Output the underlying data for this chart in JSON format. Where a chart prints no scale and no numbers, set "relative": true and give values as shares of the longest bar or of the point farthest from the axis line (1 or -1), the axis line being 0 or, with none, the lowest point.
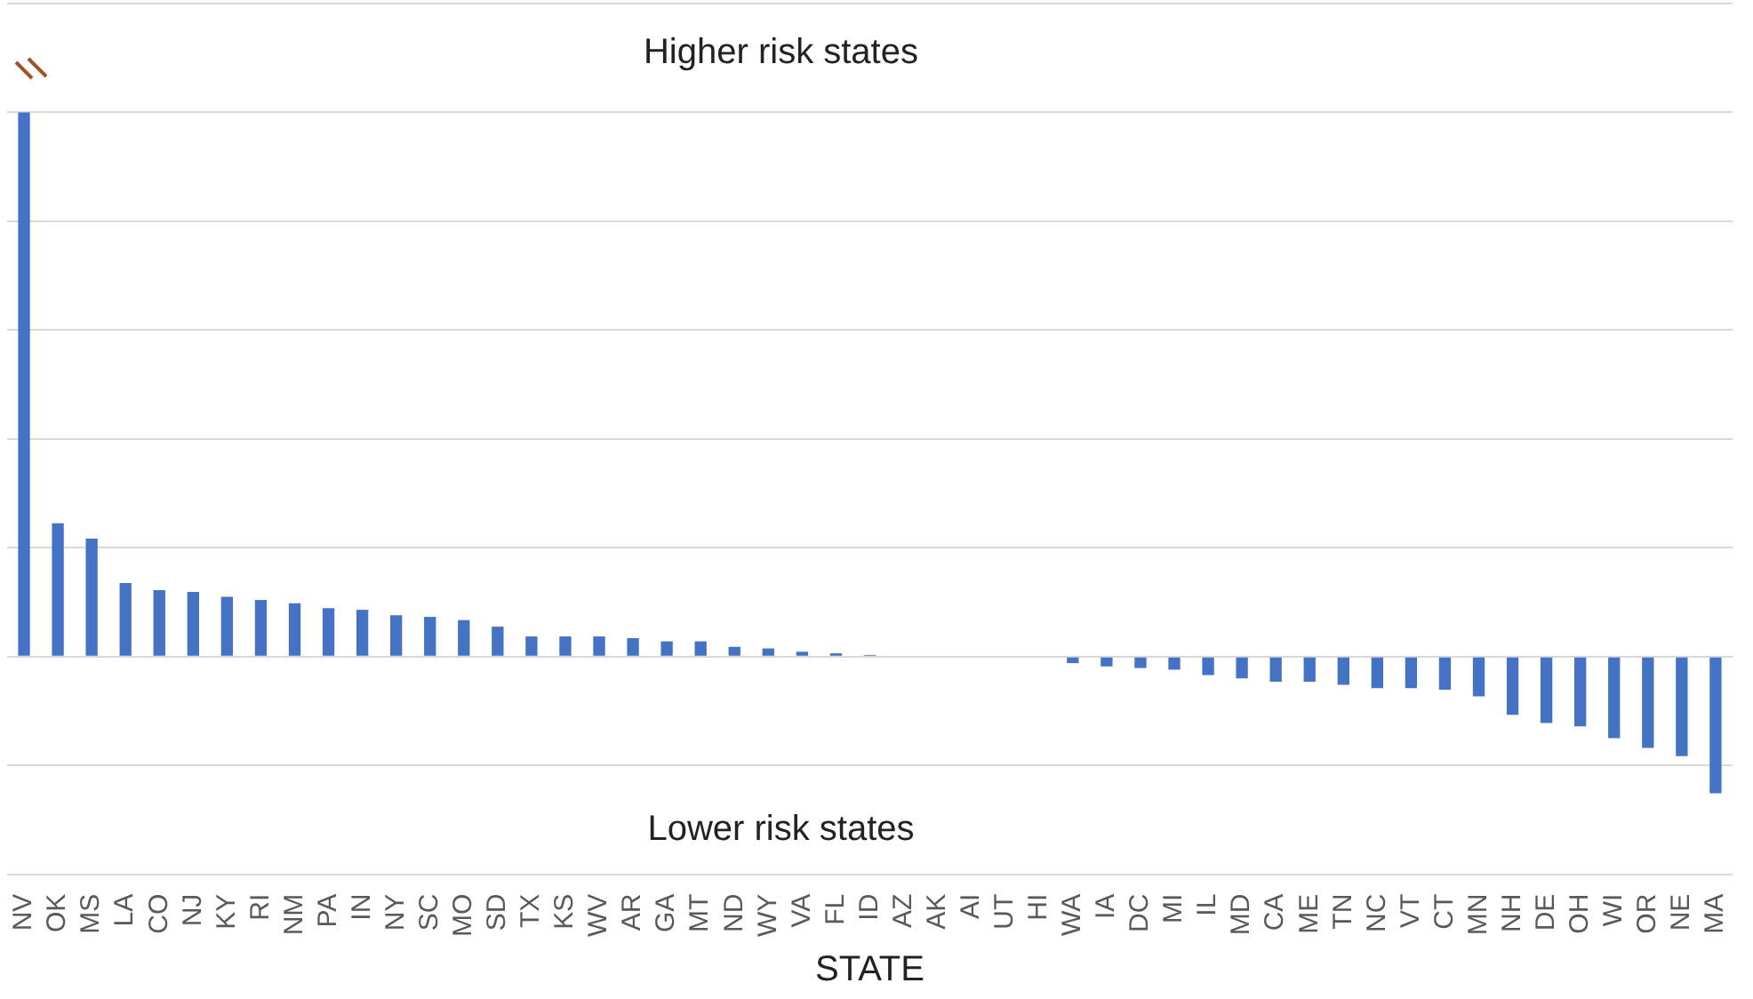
{
  "chart_data": {
    "type": "bar",
    "xlabel": "STATE",
    "annotations": [
      "Higher risk states",
      "Lower risk states"
    ],
    "relative": true,
    "grid": "y",
    "tick_labels": "x",
    "color": "#4472c4",
    "categories": [
      "NV",
      "OK",
      "MS",
      "LA",
      "CO",
      "NJ",
      "KY",
      "RI",
      "NM",
      "PA",
      "IN",
      "NY",
      "SC",
      "MO",
      "SD",
      "TX",
      "KS",
      "WV",
      "AR",
      "GA",
      "MT",
      "ND",
      "WY",
      "VA",
      "FL",
      "ID",
      "AZ",
      "AK",
      "AI",
      "UT",
      "HI",
      "WA",
      "IA",
      "DC",
      "MI",
      "IL",
      "MD",
      "CA",
      "ME",
      "TN",
      "NC",
      "VT",
      "CT",
      "MN",
      "NH",
      "DE",
      "OH",
      "WI",
      "OR",
      "NE",
      "MA"
    ],
    "values": [
      1,
      0.245,
      0.217,
      0.135,
      0.122,
      0.119,
      0.11,
      0.104,
      0.098,
      0.089,
      0.086,
      0.076,
      0.073,
      0.067,
      0.055,
      0.037,
      0.037,
      0.037,
      0.034,
      0.028,
      0.028,
      0.018,
      0.015,
      0.009,
      0.006,
      0.003,
      0,
      0,
      0,
      0,
      0,
      -0.012,
      -0.018,
      -0.021,
      -0.024,
      -0.034,
      -0.04,
      -0.046,
      -0.046,
      -0.052,
      -0.058,
      -0.058,
      -0.061,
      -0.073,
      -0.107,
      -0.122,
      -0.128,
      -0.15,
      -0.168,
      -0.183,
      -0.251
    ]
  }
}
